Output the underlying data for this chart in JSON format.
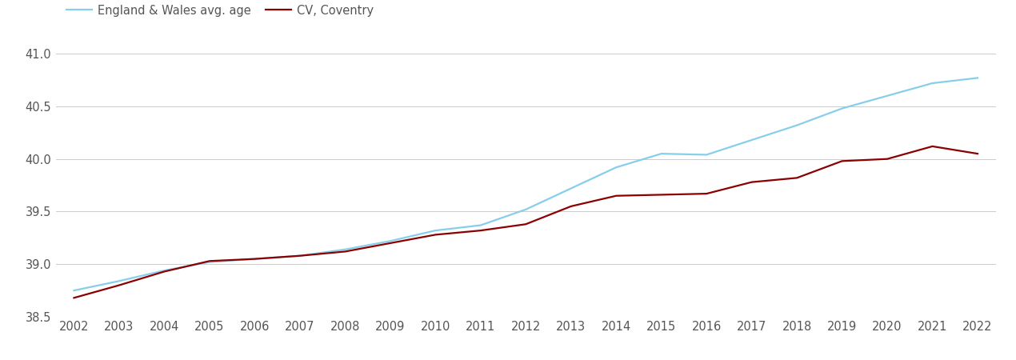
{
  "years": [
    2002,
    2003,
    2004,
    2005,
    2006,
    2007,
    2008,
    2009,
    2010,
    2011,
    2012,
    2013,
    2014,
    2015,
    2016,
    2017,
    2018,
    2019,
    2020,
    2021,
    2022
  ],
  "coventry": [
    38.68,
    38.8,
    38.93,
    39.03,
    39.05,
    39.08,
    39.12,
    39.2,
    39.28,
    39.32,
    39.38,
    39.55,
    39.65,
    39.66,
    39.67,
    39.78,
    39.82,
    39.98,
    40.0,
    40.12,
    40.05
  ],
  "england_wales": [
    38.75,
    38.84,
    38.94,
    39.02,
    39.05,
    39.08,
    39.14,
    39.22,
    39.32,
    39.37,
    39.52,
    39.72,
    39.92,
    40.05,
    40.04,
    40.18,
    40.32,
    40.48,
    40.6,
    40.72,
    40.77
  ],
  "coventry_color": "#8B0000",
  "england_wales_color": "#87CEEB",
  "line_width": 1.6,
  "legend_labels": [
    "CV, Coventry",
    "England & Wales avg. age"
  ],
  "ylim": [
    38.5,
    41.1
  ],
  "yticks": [
    38.5,
    39.0,
    39.5,
    40.0,
    40.5,
    41.0
  ],
  "background_color": "#ffffff",
  "grid_color": "#cccccc",
  "tick_label_color": "#555555",
  "tick_label_fontsize": 10.5,
  "legend_fontsize": 10.5
}
